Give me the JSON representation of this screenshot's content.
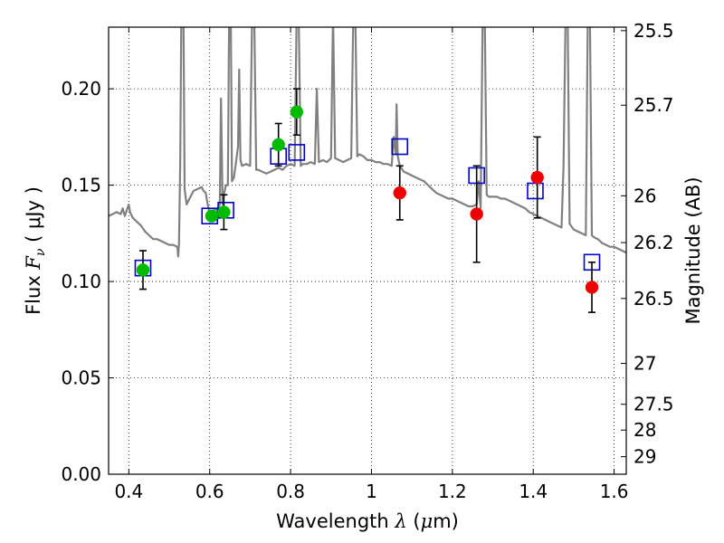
{
  "chart_data": {
    "type": "scatter",
    "xlabel": {
      "prefix": "Wavelength  ",
      "symbol": "λ",
      "unit_open": " (",
      "unit_mu": "μ",
      "unit_rest": "m)"
    },
    "ylabel": {
      "prefix": "Flux  ",
      "symbol": "F",
      "sub": "ν",
      "unit": "  (  μJy  )"
    },
    "ylabel_right": "Magnitude (AB)",
    "xlim": [
      0.35,
      1.63
    ],
    "ylim": [
      0.0,
      0.232
    ],
    "x_ticks": [
      0.4,
      0.6,
      0.8,
      1.0,
      1.2,
      1.4,
      1.6
    ],
    "x_tick_labels": [
      "0.4",
      "0.6",
      "0.8",
      "1",
      "1.2",
      "1.4",
      "1.6"
    ],
    "y_ticks": [
      0.0,
      0.05,
      0.1,
      0.15,
      0.2
    ],
    "y_tick_labels": [
      "0.00",
      "0.05",
      "0.10",
      "0.15",
      "0.20"
    ],
    "right_ticks": [
      {
        "label": "25.5",
        "flux": 0.2302
      },
      {
        "label": "25.7",
        "flux": 0.1915
      },
      {
        "label": "26",
        "flux": 0.1445
      },
      {
        "label": "26.2",
        "flux": 0.1202
      },
      {
        "label": "26.5",
        "flux": 0.0912
      },
      {
        "label": "27",
        "flux": 0.0575
      },
      {
        "label": "27.5",
        "flux": 0.0363
      },
      {
        "label": "28",
        "flux": 0.0229
      },
      {
        "label": "29",
        "flux": 0.0091
      }
    ],
    "grid": true,
    "series": [
      {
        "style": "line",
        "color": "#808080",
        "points": [
          [
            0.35,
            0.134
          ],
          [
            0.36,
            0.135
          ],
          [
            0.37,
            0.136
          ],
          [
            0.38,
            0.135
          ],
          [
            0.385,
            0.138
          ],
          [
            0.39,
            0.134
          ],
          [
            0.395,
            0.137
          ],
          [
            0.4,
            0.14
          ],
          [
            0.403,
            0.136
          ],
          [
            0.41,
            0.133
          ],
          [
            0.42,
            0.131
          ],
          [
            0.43,
            0.129
          ],
          [
            0.44,
            0.126
          ],
          [
            0.45,
            0.124
          ],
          [
            0.46,
            0.122
          ],
          [
            0.47,
            0.122
          ],
          [
            0.48,
            0.121
          ],
          [
            0.49,
            0.12
          ],
          [
            0.5,
            0.119
          ],
          [
            0.51,
            0.119
          ],
          [
            0.52,
            0.118
          ],
          [
            0.522,
            0.113
          ],
          [
            0.524,
            0.12
          ],
          [
            0.527,
            0.16
          ],
          [
            0.53,
            0.24
          ],
          [
            0.535,
            0.24
          ],
          [
            0.538,
            0.148
          ],
          [
            0.543,
            0.14
          ],
          [
            0.55,
            0.143
          ],
          [
            0.56,
            0.147
          ],
          [
            0.57,
            0.148
          ],
          [
            0.58,
            0.149
          ],
          [
            0.585,
            0.147
          ],
          [
            0.59,
            0.146
          ],
          [
            0.595,
            0.14
          ],
          [
            0.6,
            0.135
          ],
          [
            0.61,
            0.137
          ],
          [
            0.62,
            0.138
          ],
          [
            0.625,
            0.14
          ],
          [
            0.628,
            0.195
          ],
          [
            0.632,
            0.14
          ],
          [
            0.635,
            0.145
          ],
          [
            0.64,
            0.15
          ],
          [
            0.645,
            0.15
          ],
          [
            0.648,
            0.24
          ],
          [
            0.652,
            0.24
          ],
          [
            0.655,
            0.152
          ],
          [
            0.66,
            0.154
          ],
          [
            0.665,
            0.162
          ],
          [
            0.67,
            0.17
          ],
          [
            0.673,
            0.21
          ],
          [
            0.676,
            0.163
          ],
          [
            0.68,
            0.16
          ],
          [
            0.69,
            0.161
          ],
          [
            0.7,
            0.16
          ],
          [
            0.705,
            0.24
          ],
          [
            0.71,
            0.24
          ],
          [
            0.715,
            0.158
          ],
          [
            0.72,
            0.158
          ],
          [
            0.73,
            0.157
          ],
          [
            0.74,
            0.156
          ],
          [
            0.75,
            0.157
          ],
          [
            0.76,
            0.158
          ],
          [
            0.77,
            0.159
          ],
          [
            0.78,
            0.158
          ],
          [
            0.79,
            0.16
          ],
          [
            0.8,
            0.161
          ],
          [
            0.81,
            0.16
          ],
          [
            0.815,
            0.24
          ],
          [
            0.82,
            0.24
          ],
          [
            0.825,
            0.16
          ],
          [
            0.83,
            0.161
          ],
          [
            0.84,
            0.161
          ],
          [
            0.85,
            0.162
          ],
          [
            0.86,
            0.161
          ],
          [
            0.865,
            0.2
          ],
          [
            0.87,
            0.162
          ],
          [
            0.88,
            0.163
          ],
          [
            0.89,
            0.162
          ],
          [
            0.9,
            0.164
          ],
          [
            0.905,
            0.24
          ],
          [
            0.91,
            0.164
          ],
          [
            0.92,
            0.163
          ],
          [
            0.93,
            0.162
          ],
          [
            0.94,
            0.163
          ],
          [
            0.95,
            0.164
          ],
          [
            0.955,
            0.24
          ],
          [
            0.96,
            0.24
          ],
          [
            0.965,
            0.165
          ],
          [
            0.97,
            0.166
          ],
          [
            0.98,
            0.165
          ],
          [
            0.99,
            0.163
          ],
          [
            1.0,
            0.163
          ],
          [
            1.01,
            0.162
          ],
          [
            1.02,
            0.162
          ],
          [
            1.03,
            0.161
          ],
          [
            1.04,
            0.161
          ],
          [
            1.05,
            0.16
          ],
          [
            1.055,
            0.175
          ],
          [
            1.06,
            0.166
          ],
          [
            1.062,
            0.192
          ],
          [
            1.065,
            0.165
          ],
          [
            1.07,
            0.16
          ],
          [
            1.08,
            0.157
          ],
          [
            1.09,
            0.156
          ],
          [
            1.1,
            0.155
          ],
          [
            1.11,
            0.154
          ],
          [
            1.12,
            0.153
          ],
          [
            1.13,
            0.152
          ],
          [
            1.14,
            0.15
          ],
          [
            1.15,
            0.148
          ],
          [
            1.16,
            0.146
          ],
          [
            1.17,
            0.145
          ],
          [
            1.18,
            0.144
          ],
          [
            1.19,
            0.143
          ],
          [
            1.2,
            0.143
          ],
          [
            1.21,
            0.142
          ],
          [
            1.22,
            0.141
          ],
          [
            1.23,
            0.14
          ],
          [
            1.24,
            0.139
          ],
          [
            1.25,
            0.139
          ],
          [
            1.26,
            0.14
          ],
          [
            1.265,
            0.152
          ],
          [
            1.27,
            0.138
          ],
          [
            1.275,
            0.24
          ],
          [
            1.28,
            0.24
          ],
          [
            1.285,
            0.145
          ],
          [
            1.29,
            0.144
          ],
          [
            1.3,
            0.144
          ],
          [
            1.31,
            0.144
          ],
          [
            1.32,
            0.143
          ],
          [
            1.33,
            0.143
          ],
          [
            1.34,
            0.142
          ],
          [
            1.35,
            0.141
          ],
          [
            1.36,
            0.14
          ],
          [
            1.37,
            0.139
          ],
          [
            1.38,
            0.138
          ],
          [
            1.39,
            0.136
          ],
          [
            1.4,
            0.135
          ],
          [
            1.41,
            0.134
          ],
          [
            1.42,
            0.133
          ],
          [
            1.43,
            0.132
          ],
          [
            1.44,
            0.131
          ],
          [
            1.45,
            0.13
          ],
          [
            1.46,
            0.129
          ],
          [
            1.47,
            0.128
          ],
          [
            1.475,
            0.16
          ],
          [
            1.48,
            0.24
          ],
          [
            1.485,
            0.24
          ],
          [
            1.49,
            0.13
          ],
          [
            1.5,
            0.127
          ],
          [
            1.51,
            0.126
          ],
          [
            1.52,
            0.125
          ],
          [
            1.53,
            0.124
          ],
          [
            1.535,
            0.24
          ],
          [
            1.54,
            0.24
          ],
          [
            1.545,
            0.124
          ],
          [
            1.55,
            0.123
          ],
          [
            1.56,
            0.122
          ],
          [
            1.57,
            0.12
          ],
          [
            1.58,
            0.119
          ],
          [
            1.59,
            0.118
          ],
          [
            1.6,
            0.118
          ],
          [
            1.61,
            0.117
          ],
          [
            1.62,
            0.116
          ],
          [
            1.63,
            0.115
          ]
        ]
      },
      {
        "style": "hollow-square",
        "color": "#0000cc",
        "points": [
          [
            0.435,
            0.107
          ],
          [
            0.6,
            0.134
          ],
          [
            0.64,
            0.137
          ],
          [
            0.77,
            0.165
          ],
          [
            0.815,
            0.167
          ],
          [
            1.07,
            0.17
          ],
          [
            1.26,
            0.155
          ],
          [
            1.405,
            0.147
          ],
          [
            1.545,
            0.11
          ]
        ]
      },
      {
        "style": "filled-circle",
        "color": "#00bb00",
        "points": [
          {
            "x": 0.435,
            "y": 0.106,
            "err": 0.01
          },
          {
            "x": 0.605,
            "y": 0.134,
            "err": null
          },
          {
            "x": 0.635,
            "y": 0.136,
            "err": 0.009
          },
          {
            "x": 0.77,
            "y": 0.171,
            "err": 0.011
          },
          {
            "x": 0.815,
            "y": 0.188,
            "err": 0.012
          }
        ]
      },
      {
        "style": "filled-circle",
        "color": "#ee0000",
        "points": [
          {
            "x": 1.07,
            "y": 0.146,
            "err": 0.014
          },
          {
            "x": 1.26,
            "y": 0.135,
            "err": 0.025
          },
          {
            "x": 1.41,
            "y": 0.154,
            "err": 0.021
          },
          {
            "x": 1.545,
            "y": 0.097,
            "err": 0.013
          }
        ]
      }
    ]
  }
}
